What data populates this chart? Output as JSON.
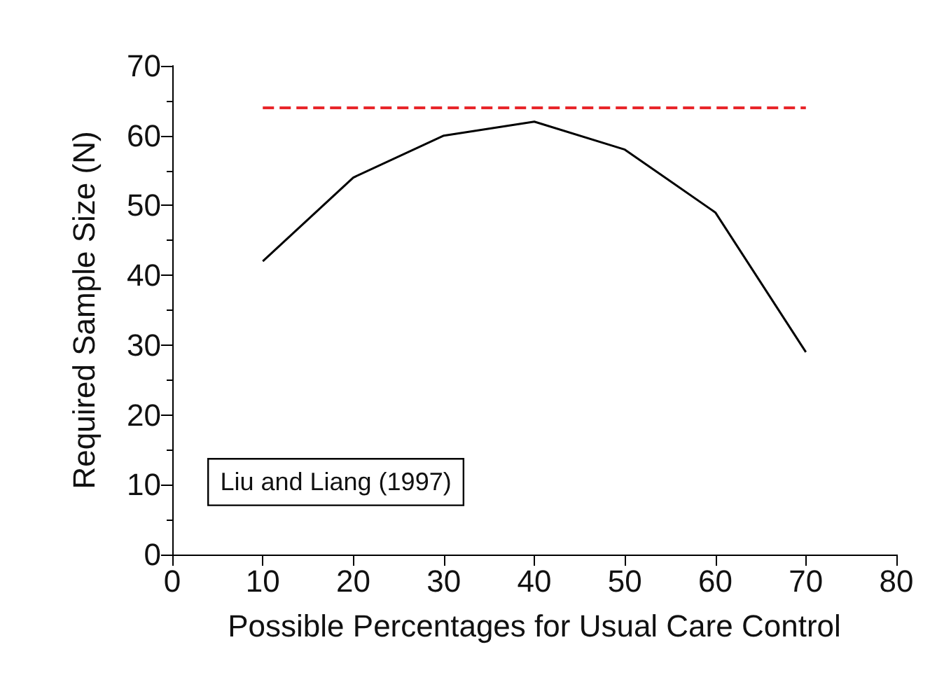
{
  "chart_data": {
    "type": "line",
    "xlabel": "Possible Percentages for Usual Care Control",
    "ylabel": "Required Sample Size (N)",
    "x": [
      10,
      20,
      30,
      40,
      50,
      60,
      70
    ],
    "series": [
      {
        "color": "#000000",
        "values": [
          42,
          54,
          60,
          62,
          58,
          49,
          29
        ]
      }
    ],
    "xlim": [
      0,
      80
    ],
    "xticks": [
      0,
      10,
      20,
      30,
      40,
      50,
      60,
      70,
      80
    ],
    "ylim": [
      0,
      70
    ],
    "yticks": [
      0,
      10,
      20,
      30,
      40,
      50,
      60,
      70
    ],
    "ref_lines": [
      {
        "axis": "y",
        "value": 64,
        "color": "#e8262a",
        "line_style": "dashed"
      }
    ],
    "annotations": [
      "Liu and Liang (1997)"
    ],
    "grid": false,
    "marker": "none",
    "line_style": "solid"
  }
}
